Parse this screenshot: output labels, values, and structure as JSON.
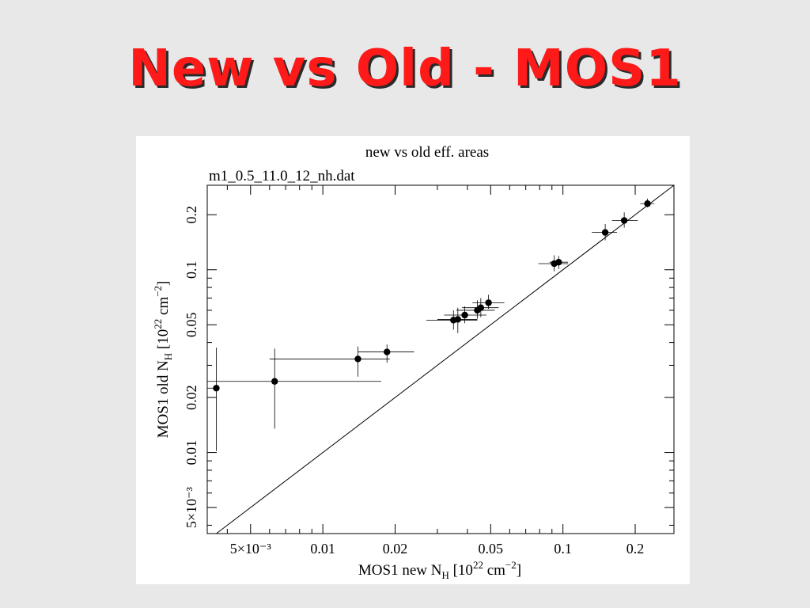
{
  "slide": {
    "title": "New vs Old - MOS1"
  },
  "chart_data": {
    "type": "scatter",
    "title": "new vs old eff. areas",
    "subtitle": "m1_0.5_11.0_12_nh.dat",
    "xlabel": {
      "text": "MOS1 new N",
      "sub": "H",
      "unit_pre": " [10",
      "sup": "22",
      "unit_post": " cm",
      "sup2": "−2",
      "end": "]"
    },
    "ylabel": {
      "text": "MOS1 old N",
      "sub": "H",
      "unit_pre": " [10",
      "sup": "22",
      "unit_post": " cm",
      "sup2": "−2",
      "end": "]"
    },
    "xscale": "log",
    "yscale": "log",
    "xlim": [
      0.0033,
      0.29
    ],
    "ylim": [
      0.0036,
      0.29
    ],
    "x_ticks": [
      {
        "value": 0.005,
        "label": "5×10⁻³"
      },
      {
        "value": 0.01,
        "label": "0.01"
      },
      {
        "value": 0.02,
        "label": "0.02"
      },
      {
        "value": 0.05,
        "label": "0.05"
      },
      {
        "value": 0.1,
        "label": "0.1"
      },
      {
        "value": 0.2,
        "label": "0.2"
      }
    ],
    "y_ticks": [
      {
        "value": 0.005,
        "label": "5×10⁻³"
      },
      {
        "value": 0.01,
        "label": "0.01"
      },
      {
        "value": 0.02,
        "label": "0.02"
      },
      {
        "value": 0.05,
        "label": "0.05"
      },
      {
        "value": 0.1,
        "label": "0.1"
      },
      {
        "value": 0.2,
        "label": "0.2"
      }
    ],
    "reference_line": "y = x",
    "points": [
      {
        "x": 0.0036,
        "y": 0.0225,
        "xerr": [
          0.0033,
          0.0036
        ],
        "yerr": [
          0.0102,
          0.0375
        ]
      },
      {
        "x": 0.0063,
        "y": 0.0245,
        "xerr": [
          0.0033,
          0.0175
        ],
        "yerr": [
          0.0135,
          0.037
        ]
      },
      {
        "x": 0.014,
        "y": 0.0325,
        "xerr": [
          0.006,
          0.019
        ],
        "yerr": [
          0.026,
          0.038
        ]
      },
      {
        "x": 0.0185,
        "y": 0.0355,
        "xerr": [
          0.014,
          0.024
        ],
        "yerr": [
          0.031,
          0.039
        ]
      },
      {
        "x": 0.035,
        "y": 0.053,
        "xerr": [
          0.027,
          0.044
        ],
        "yerr": [
          0.047,
          0.06
        ]
      },
      {
        "x": 0.0365,
        "y": 0.0535,
        "xerr": [
          0.03,
          0.044
        ],
        "yerr": [
          0.045,
          0.062
        ]
      },
      {
        "x": 0.039,
        "y": 0.0565,
        "xerr": [
          0.032,
          0.048
        ],
        "yerr": [
          0.051,
          0.063
        ]
      },
      {
        "x": 0.044,
        "y": 0.06,
        "xerr": [
          0.036,
          0.052
        ],
        "yerr": [
          0.054,
          0.068
        ]
      },
      {
        "x": 0.0455,
        "y": 0.062,
        "xerr": [
          0.038,
          0.054
        ],
        "yerr": [
          0.055,
          0.07
        ]
      },
      {
        "x": 0.049,
        "y": 0.066,
        "xerr": [
          0.042,
          0.057
        ],
        "yerr": [
          0.061,
          0.073
        ]
      },
      {
        "x": 0.092,
        "y": 0.108,
        "xerr": [
          0.079,
          0.105
        ],
        "yerr": [
          0.098,
          0.12
        ]
      },
      {
        "x": 0.096,
        "y": 0.11,
        "xerr": [
          0.088,
          0.105
        ],
        "yerr": [
          0.101,
          0.119
        ]
      },
      {
        "x": 0.15,
        "y": 0.16,
        "xerr": [
          0.132,
          0.168
        ],
        "yerr": [
          0.145,
          0.178
        ]
      },
      {
        "x": 0.18,
        "y": 0.186,
        "xerr": [
          0.16,
          0.205
        ],
        "yerr": [
          0.17,
          0.206
        ]
      },
      {
        "x": 0.225,
        "y": 0.23,
        "xerr": [
          0.21,
          0.24
        ],
        "yerr": [
          0.22,
          0.245
        ]
      }
    ],
    "grid": false,
    "legend": "none"
  }
}
